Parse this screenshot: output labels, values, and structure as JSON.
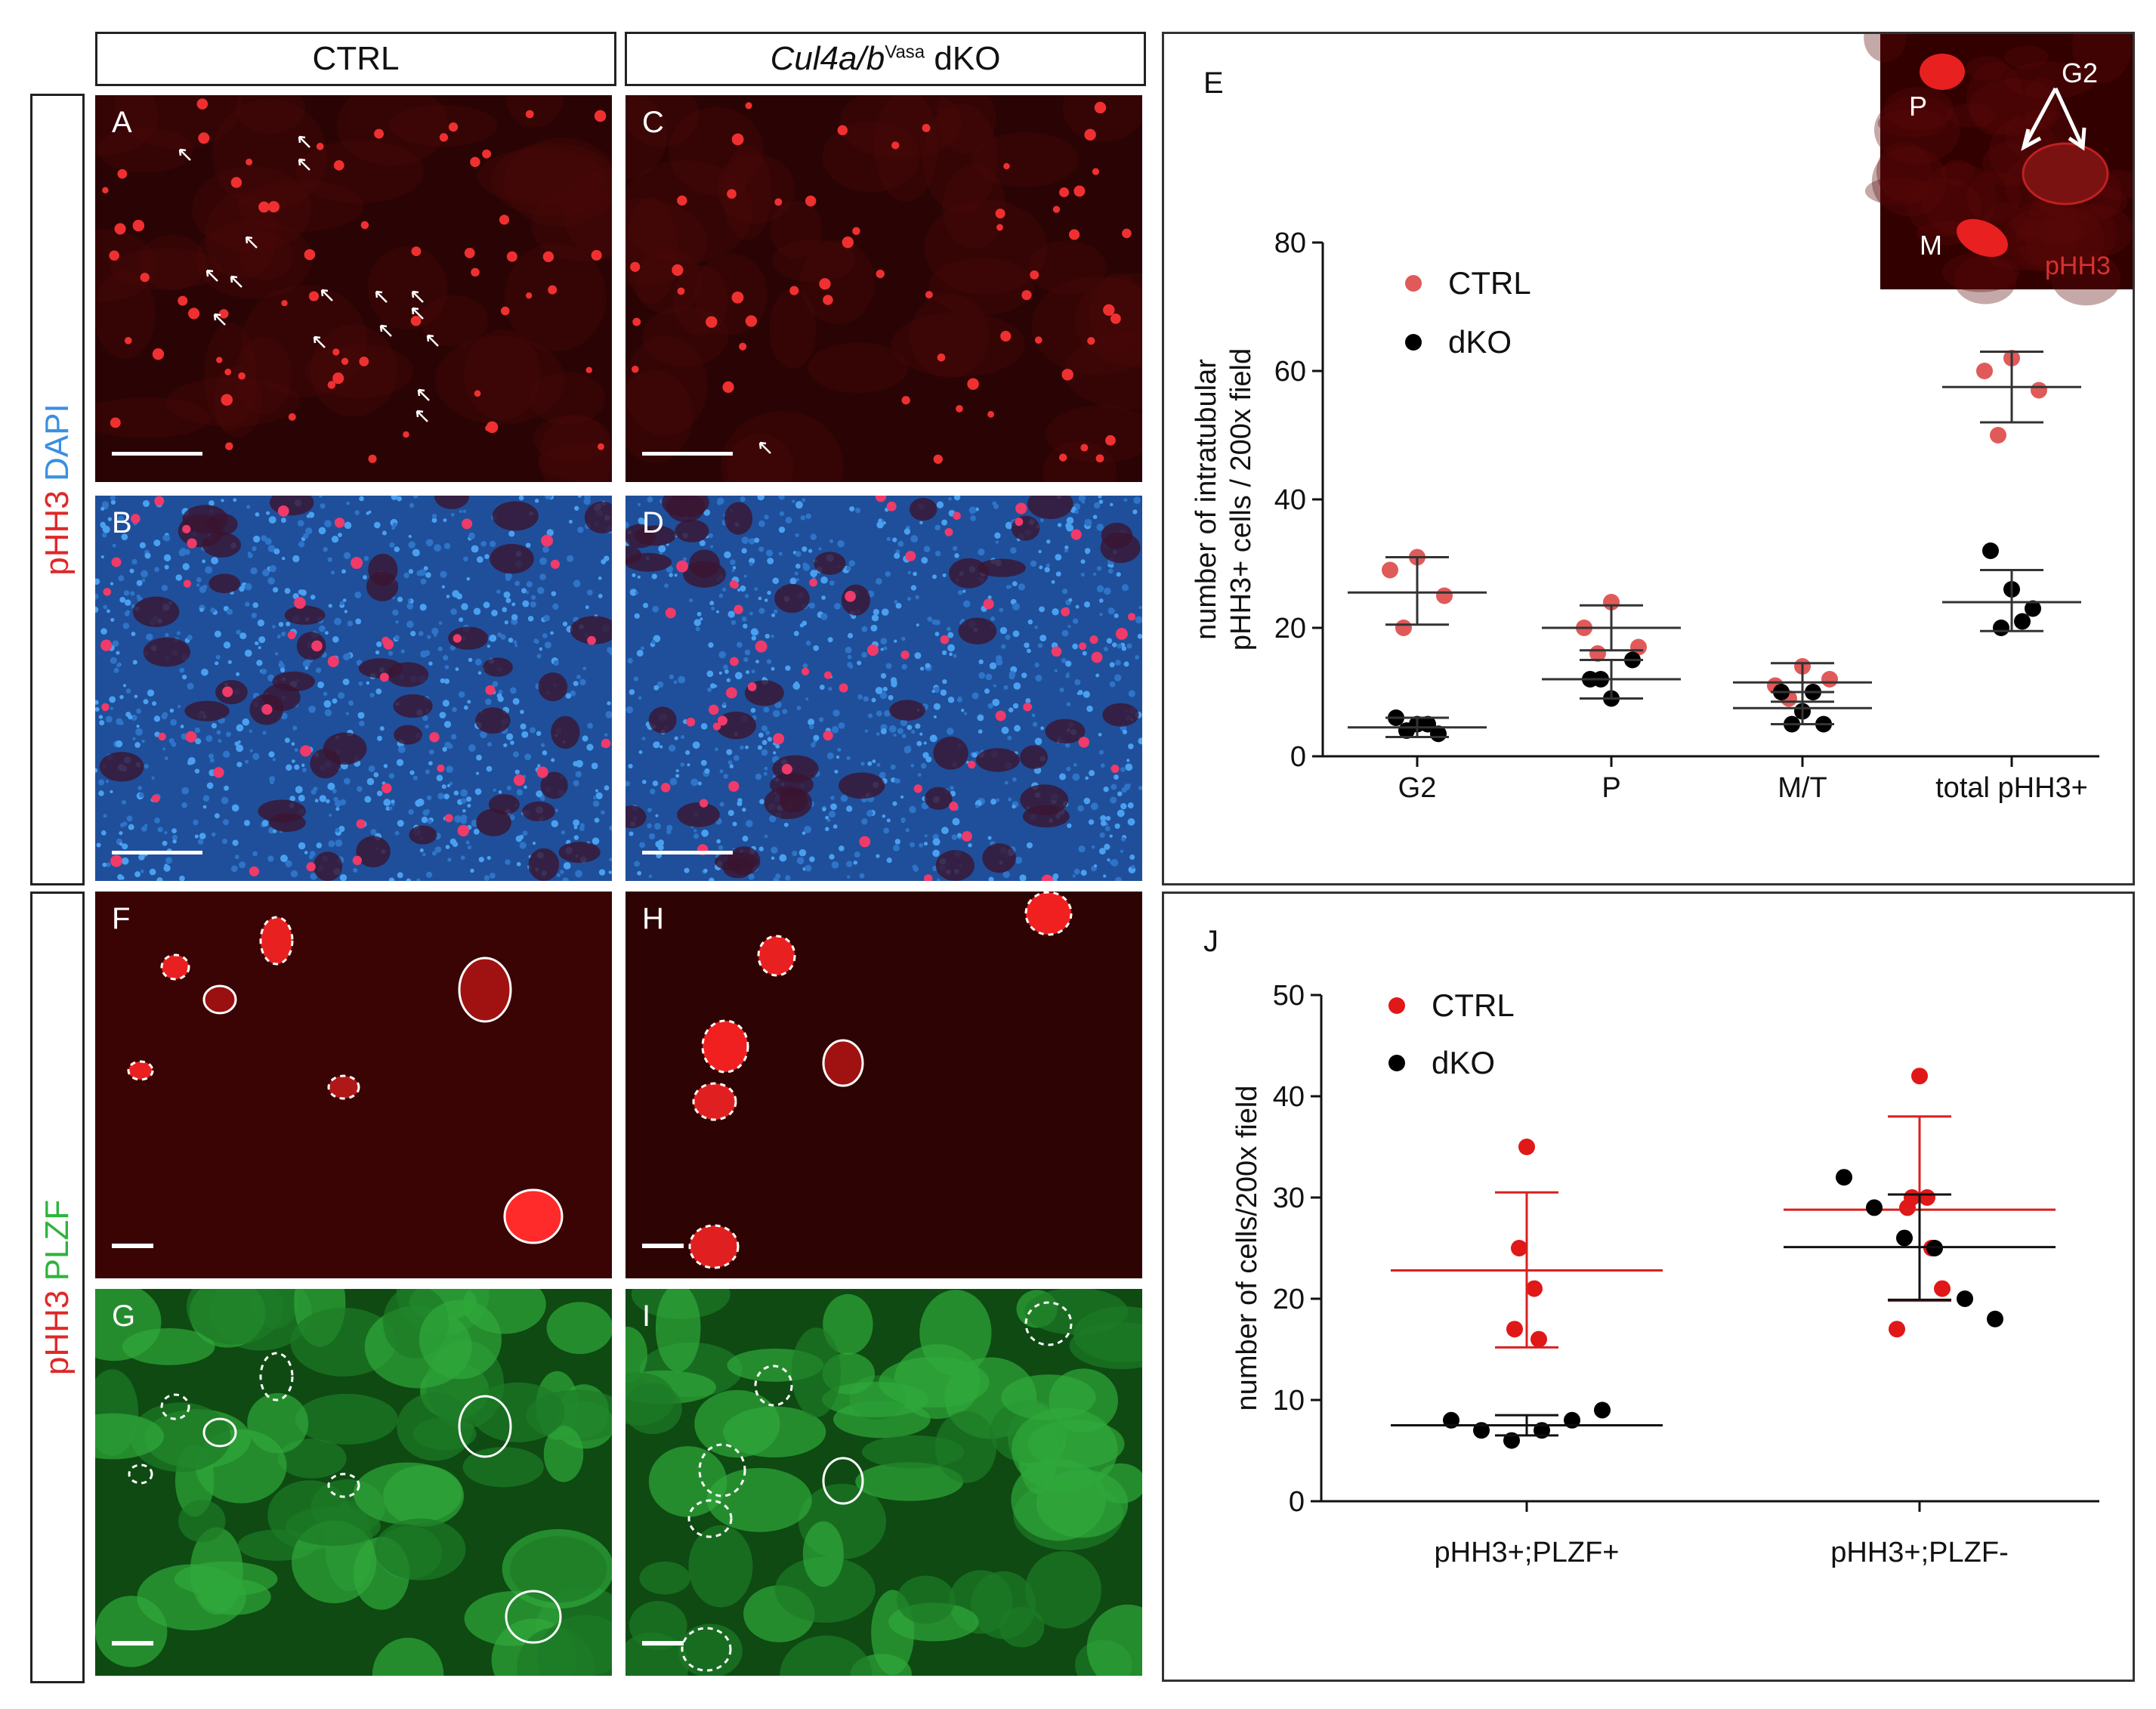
{
  "column_headers": {
    "ctrl": "CTRL",
    "dko_prefix": "Cul4a/b",
    "dko_superscript": "Vasa",
    "dko_suffix": " dKO"
  },
  "row_labels": {
    "top_stain_1": "pHH3",
    "top_stain_2": "DAPI",
    "bottom_stain_1": "pHH3",
    "bottom_stain_2": "PLZF"
  },
  "panels": {
    "a": "A",
    "b": "B",
    "c": "C",
    "d": "D",
    "f": "F",
    "g": "G",
    "h": "H",
    "i": "I"
  },
  "colors": {
    "ctrl_dot": "#e05a5a",
    "ctrl_dot_j": "#e01818",
    "dko_dot": "#000000",
    "pHH3_red": "#e02828",
    "dapi_blue": "#3b8fe0",
    "plzf_green": "#2fb43c"
  },
  "inset": {
    "p_label": "P",
    "g2_label": "G2",
    "m_label": "M",
    "stain": "pHH3"
  },
  "chart_data": [
    {
      "panel": "E",
      "type": "scatter",
      "ylabel_line1": "number of intratubular",
      "ylabel_line2": "pHH3+ cells / 200x field",
      "ylim": [
        0,
        80
      ],
      "yticks": [
        "0",
        "20",
        "40",
        "60",
        "80"
      ],
      "categories": [
        "G2",
        "P",
        "M/T",
        "total pHH3+"
      ],
      "legend_placement": "top-left",
      "series": [
        {
          "name": "CTRL",
          "points": [
            [
              0,
              31
            ],
            [
              0,
              29
            ],
            [
              0,
              25
            ],
            [
              0,
              20
            ],
            [
              1,
              24
            ],
            [
              1,
              20
            ],
            [
              1,
              17
            ],
            [
              1,
              16
            ],
            [
              2,
              14
            ],
            [
              2,
              11
            ],
            [
              2,
              12
            ],
            [
              2,
              9
            ],
            [
              3,
              62
            ],
            [
              3,
              60
            ],
            [
              3,
              57
            ],
            [
              3,
              50
            ]
          ],
          "mean": [
            25.5,
            20,
            11.5,
            57.5
          ],
          "upper": [
            31,
            23.5,
            14.5,
            63
          ],
          "lower": [
            20.5,
            16.5,
            8.5,
            52
          ]
        },
        {
          "name": "dKO",
          "points": [
            [
              0,
              6
            ],
            [
              0,
              5
            ],
            [
              0,
              3.5
            ],
            [
              0,
              4
            ],
            [
              0,
              5
            ],
            [
              1,
              12
            ],
            [
              1,
              9
            ],
            [
              1,
              15
            ],
            [
              1,
              12
            ],
            [
              2,
              10
            ],
            [
              2,
              7
            ],
            [
              2,
              5
            ],
            [
              2,
              5
            ],
            [
              2,
              10
            ],
            [
              3,
              32
            ],
            [
              3,
              26
            ],
            [
              3,
              23
            ],
            [
              3,
              20
            ],
            [
              3,
              21
            ]
          ],
          "mean": [
            4.5,
            12,
            7.5,
            24
          ],
          "upper": [
            6,
            15,
            10,
            29
          ],
          "lower": [
            3,
            9,
            5,
            19.5
          ]
        }
      ]
    },
    {
      "panel": "J",
      "type": "scatter",
      "ylabel": "number of cells/200x field",
      "ylim": [
        0,
        50
      ],
      "yticks": [
        "0",
        "10",
        "20",
        "30",
        "40",
        "50"
      ],
      "categories": [
        "pHH3+;PLZF+",
        "pHH3+;PLZF-"
      ],
      "legend_placement": "top-left",
      "series": [
        {
          "name": "CTRL",
          "points": [
            [
              0,
              35
            ],
            [
              0,
              25
            ],
            [
              0,
              21
            ],
            [
              0,
              17
            ],
            [
              0,
              16
            ],
            [
              1,
              42
            ],
            [
              1,
              30
            ],
            [
              1,
              30
            ],
            [
              1,
              29
            ],
            [
              1,
              25
            ],
            [
              1,
              21
            ],
            [
              1,
              17
            ]
          ],
          "mean": [
            22.8,
            28.8
          ],
          "upper": [
            30.5,
            38
          ],
          "lower": [
            15.2,
            19.8
          ]
        },
        {
          "name": "dKO",
          "points": [
            [
              0,
              8
            ],
            [
              0,
              7
            ],
            [
              0,
              6
            ],
            [
              0,
              7
            ],
            [
              0,
              8
            ],
            [
              0,
              9
            ],
            [
              1,
              32
            ],
            [
              1,
              29
            ],
            [
              1,
              26
            ],
            [
              1,
              25
            ],
            [
              1,
              20
            ],
            [
              1,
              18
            ]
          ],
          "mean": [
            7.5,
            25.1
          ],
          "upper": [
            8.5,
            30.3
          ],
          "lower": [
            6.5,
            19.9
          ]
        }
      ]
    }
  ]
}
